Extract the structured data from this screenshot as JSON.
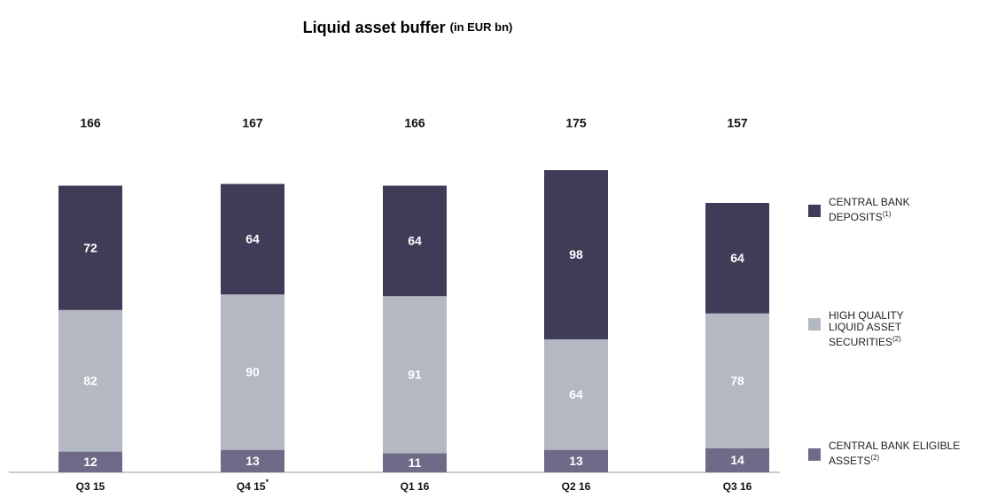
{
  "chart_data": {
    "type": "stacked-bar",
    "title": "Liquid asset buffer",
    "title_unit": "(in EUR bn)",
    "categories": [
      "Q3 15",
      "Q4 15",
      "Q1 16",
      "Q2 16",
      "Q3 16"
    ],
    "category_notes": [
      null,
      "*",
      null,
      null,
      null
    ],
    "totals": [
      166,
      167,
      166,
      175,
      157
    ],
    "ylim": [
      0,
      175
    ],
    "series": [
      {
        "name": "CENTRAL BANK ELIGIBLE ASSETS",
        "footnote": "(2)",
        "color": "#6e6a87",
        "values": [
          12,
          13,
          11,
          13,
          14
        ]
      },
      {
        "name": "HIGH QUALITY LIQUID ASSET SECURITIES",
        "footnote": "(2)",
        "color": "#b3b8c2",
        "values": [
          82,
          90,
          91,
          64,
          78
        ]
      },
      {
        "name": "CENTRAL BANK DEPOSITS",
        "footnote": "(1)",
        "color": "#403c58",
        "values": [
          72,
          64,
          64,
          98,
          64
        ]
      }
    ]
  }
}
